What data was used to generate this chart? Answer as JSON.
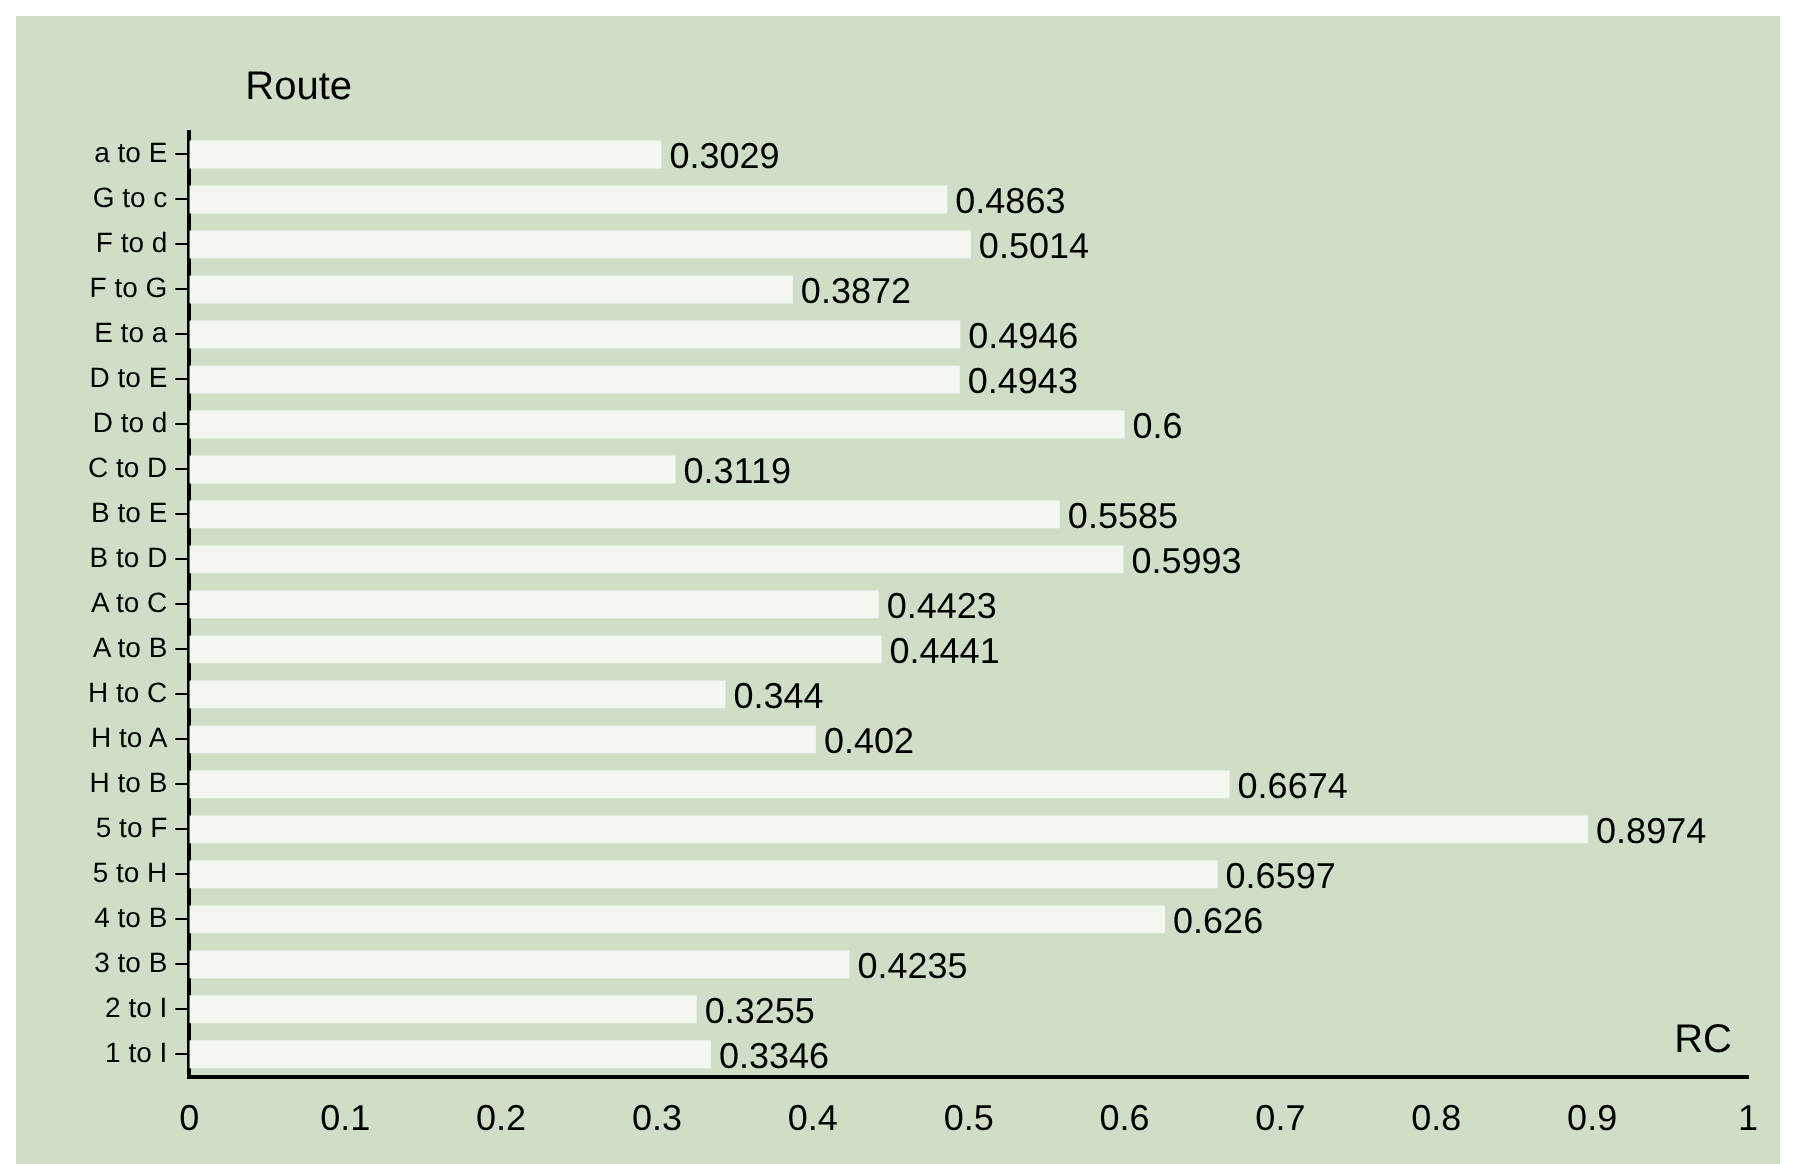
{
  "chart_data": {
    "type": "bar",
    "orientation": "horizontal",
    "xlabel": "RC",
    "ylabel": "Route",
    "categories": [
      "a to E",
      "G to c",
      "F to d",
      "F to G",
      "E to a",
      "D to E",
      "D to d",
      "C to D",
      "B to E",
      "B to D",
      "A to C",
      "A to B",
      "H to C",
      "H to A",
      "H to B",
      "5 to F",
      "5 to H",
      "4 to B",
      "3 to B",
      "2 to I",
      "1 to I"
    ],
    "values": [
      0.3029,
      0.4863,
      0.5014,
      0.3872,
      0.4946,
      0.4943,
      0.6,
      0.3119,
      0.5585,
      0.5993,
      0.4423,
      0.4441,
      0.344,
      0.402,
      0.6674,
      0.8974,
      0.6597,
      0.626,
      0.4235,
      0.3255,
      0.3346
    ],
    "color": "#f2f7ef",
    "xlim": [
      0,
      1
    ],
    "xticks": [
      0,
      0.1,
      0.2,
      0.3,
      0.4,
      0.5,
      0.6,
      0.7,
      0.8,
      0.9,
      1
    ],
    "grid": false,
    "legend": false,
    "data_labels": true
  }
}
